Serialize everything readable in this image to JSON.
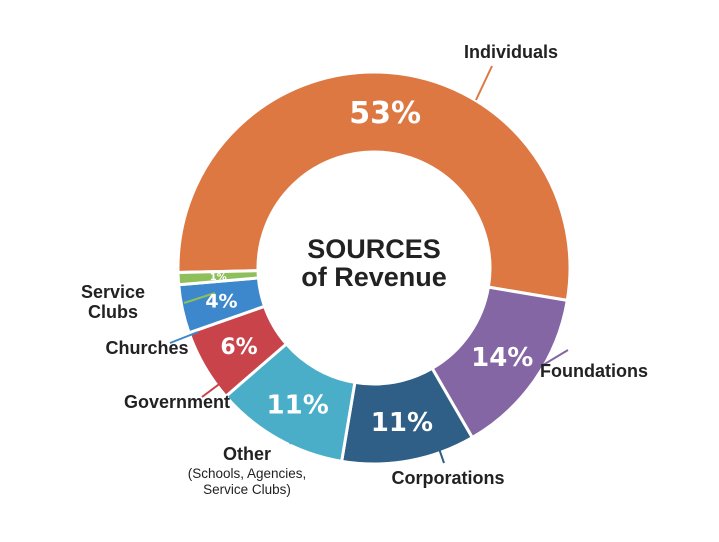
{
  "chart_data": {
    "type": "pie",
    "title": "SOURCES",
    "subtitle": "of Revenue",
    "slices": [
      {
        "label": "Individuals",
        "sublabel": "",
        "value": 53,
        "value_label": "53%",
        "color": "#dd7843"
      },
      {
        "label": "Foundations",
        "sublabel": "",
        "value": 14,
        "value_label": "14%",
        "color": "#8366a3"
      },
      {
        "label": "Corporations",
        "sublabel": "",
        "value": 11,
        "value_label": "11%",
        "color": "#2f5f86"
      },
      {
        "label": "Other",
        "sublabel": "(Schools, Agencies, Service Clubs)",
        "value": 11,
        "value_label": "11%",
        "color": "#4aaec9"
      },
      {
        "label": "Government",
        "sublabel": "",
        "value": 6,
        "value_label": "6%",
        "color": "#c9434a"
      },
      {
        "label": "Churches",
        "sublabel": "",
        "value": 4,
        "value_label": "4%",
        "color": "#3d88cc"
      },
      {
        "label": "Service Clubs",
        "sublabel": "",
        "value": 1,
        "value_label": "1%",
        "color": "#8fbf5a"
      }
    ]
  }
}
